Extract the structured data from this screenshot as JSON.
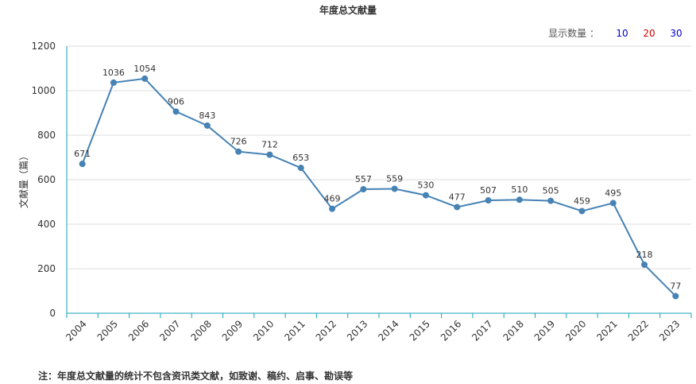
{
  "title": "年度总文献量",
  "display_count": {
    "label": "显示数量 ：",
    "options": [
      {
        "text": "10",
        "color": "#0000cc"
      },
      {
        "text": "20",
        "color": "#cc0000"
      },
      {
        "text": "30",
        "color": "#0000cc"
      }
    ]
  },
  "footnote": "注：年度总文献量的统计不包含资讯类文献，如致谢、稿约、启事、勘误等",
  "chart_data": {
    "type": "line",
    "title": "年度总文献量",
    "xlabel": "",
    "ylabel": "文献量（篇）",
    "ylim": [
      0,
      1200
    ],
    "yticks": [
      0,
      200,
      400,
      600,
      800,
      1000,
      1200
    ],
    "grid": true,
    "line_color": "#4682b4",
    "x": [
      "2004",
      "2005",
      "2006",
      "2007",
      "2008",
      "2009",
      "2010",
      "2011",
      "2012",
      "2013",
      "2014",
      "2015",
      "2016",
      "2017",
      "2018",
      "2019",
      "2020",
      "2021",
      "2022",
      "2023"
    ],
    "series": [
      {
        "values": [
          671,
          1036,
          1054,
          906,
          843,
          726,
          712,
          653,
          469,
          557,
          559,
          530,
          477,
          507,
          510,
          505,
          459,
          495,
          218,
          77
        ]
      }
    ]
  }
}
